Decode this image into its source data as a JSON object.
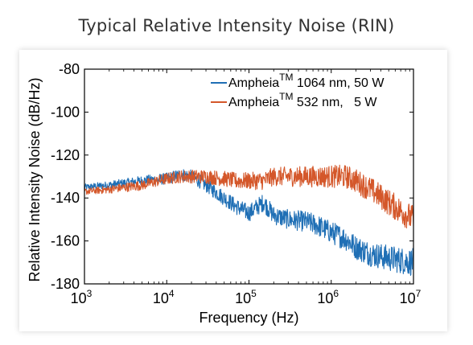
{
  "title": "Typical Relative Intensity Noise (RIN)",
  "chart_data": {
    "type": "line",
    "title": "",
    "xlabel": "Frequency (Hz)",
    "ylabel": "Relative Intensity Noise (dB/Hz)",
    "xscale": "log",
    "xlim": [
      1000,
      10000000
    ],
    "ylim": [
      -180,
      -80
    ],
    "x_ticks": [
      1000,
      10000,
      100000,
      1000000,
      10000000
    ],
    "x_tick_labels": [
      {
        "base": "10",
        "exp": "3"
      },
      {
        "base": "10",
        "exp": "4"
      },
      {
        "base": "10",
        "exp": "5"
      },
      {
        "base": "10",
        "exp": "6"
      },
      {
        "base": "10",
        "exp": "7"
      }
    ],
    "y_ticks": [
      -180,
      -160,
      -140,
      -120,
      -100,
      -80
    ],
    "y_tick_labels": [
      "-180",
      "-160",
      "-140",
      "-120",
      "-100",
      "-80"
    ],
    "grid": false,
    "legend_position": "top-right",
    "series": [
      {
        "name": "Ampheia",
        "name_sup": "TM",
        "name_rest": " 1064 nm, 50 W",
        "color": "#1f6fb5",
        "x": [
          1000,
          2000,
          5000,
          10000,
          15000,
          20000,
          30000,
          50000,
          70000,
          100000,
          150000,
          200000,
          300000,
          500000,
          700000,
          1000000,
          1500000,
          2000000,
          3000000,
          5000000,
          7000000,
          10000000
        ],
        "y": [
          -135,
          -134,
          -132,
          -131,
          -129,
          -130,
          -134,
          -140,
          -144,
          -147,
          -142,
          -148,
          -150,
          -151,
          -153,
          -156,
          -159,
          -163,
          -166,
          -168,
          -169,
          -170
        ]
      },
      {
        "name": "Ampheia",
        "name_sup": "TM",
        "name_rest": " 532 nm,   5 W",
        "color": "#d4572a",
        "x": [
          1000,
          2000,
          5000,
          10000,
          15000,
          20000,
          30000,
          50000,
          70000,
          100000,
          150000,
          200000,
          300000,
          500000,
          1000000,
          1500000,
          2000000,
          3000000,
          5000000,
          7000000,
          10000000
        ],
        "y": [
          -137,
          -136,
          -134,
          -131,
          -130,
          -130,
          -130,
          -131,
          -132,
          -132,
          -132,
          -130,
          -130,
          -130,
          -130,
          -130,
          -132,
          -136,
          -142,
          -146,
          -150
        ]
      }
    ]
  }
}
